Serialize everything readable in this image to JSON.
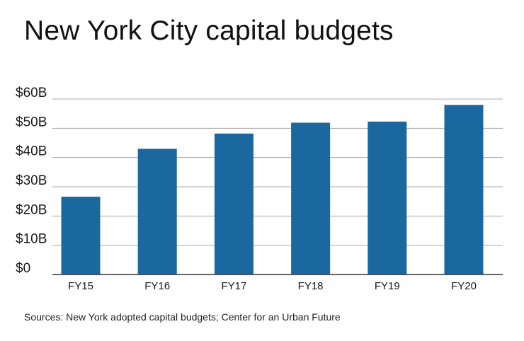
{
  "title": "New York City capital budgets",
  "source": "Sources: New York adopted capital budgets; Center for an Urban Future",
  "colors": {
    "bar": "#1b68a1",
    "grid": "#a8a8a8",
    "axis": "#333333"
  },
  "chart_data": {
    "type": "bar",
    "title": "New York City capital budgets",
    "xlabel": "",
    "ylabel": "",
    "categories": [
      "FY15",
      "FY16",
      "FY17",
      "FY18",
      "FY19",
      "FY20"
    ],
    "values": [
      26.6,
      43.0,
      48.2,
      51.9,
      52.3,
      58.0
    ],
    "ylim": [
      0,
      60
    ],
    "yticks": [
      0,
      10,
      20,
      30,
      40,
      50,
      60
    ],
    "ytick_labels": [
      "$0",
      "$10B",
      "$20B",
      "$30B",
      "$40B",
      "$50B",
      "$60B"
    ],
    "grid": true,
    "legend": "none"
  }
}
